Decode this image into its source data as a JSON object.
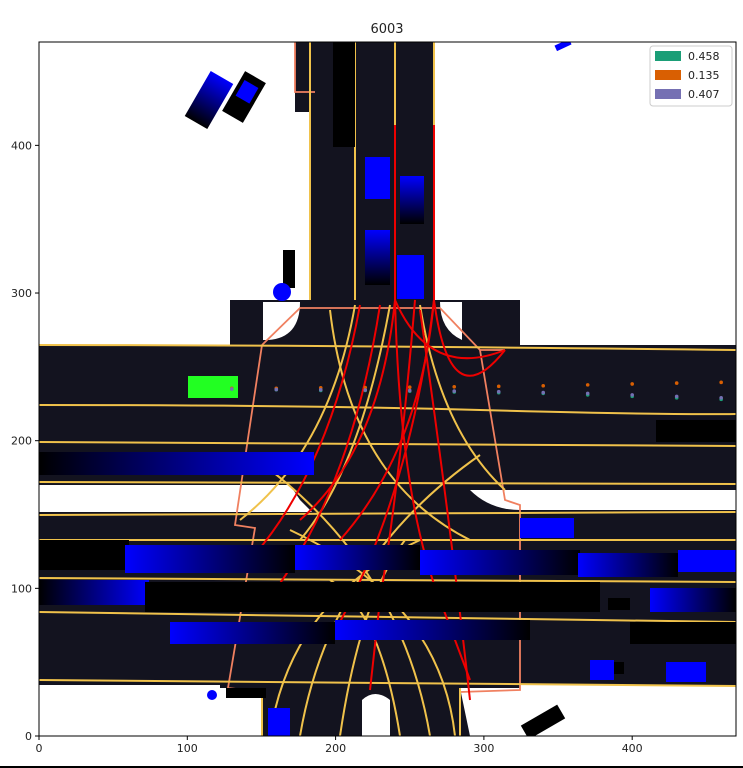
{
  "chart_data": {
    "type": "scatter",
    "title": "6003",
    "xlim": [
      0,
      470
    ],
    "ylim": [
      0,
      470
    ],
    "x_ticks": [
      0,
      100,
      200,
      300,
      400
    ],
    "y_ticks": [
      0,
      100,
      200,
      300,
      400
    ],
    "legend_placement": "top-right",
    "series": [
      {
        "name": "0.458",
        "color": "#1b9e77",
        "x": [
          130,
          160,
          190,
          220,
          250,
          280,
          310,
          340,
          370,
          400,
          430,
          460
        ],
        "y": [
          235,
          234.5,
          234,
          234,
          233.5,
          233,
          232.5,
          232,
          231,
          230,
          229,
          228
        ]
      },
      {
        "name": "0.135",
        "color": "#d95f02",
        "x": [
          130,
          160,
          190,
          220,
          250,
          280,
          310,
          340,
          370,
          400,
          430,
          460
        ],
        "y": [
          235.5,
          235.5,
          235.8,
          236,
          236.2,
          236.5,
          236.8,
          237.2,
          237.8,
          238.4,
          239,
          239.5
        ]
      },
      {
        "name": "0.407",
        "color": "#7570b3",
        "x": [
          130,
          160,
          190,
          220,
          250,
          280,
          310,
          340,
          370,
          400,
          430,
          460
        ],
        "y": [
          235,
          234.7,
          234.5,
          234.3,
          234,
          233.6,
          233.2,
          232.6,
          232,
          231,
          230,
          229
        ]
      }
    ]
  },
  "scene": {
    "ego_color": "#22ff22",
    "vehicle_color": "#0000ff",
    "road_color": "#13131f",
    "lane_line_color": "#f0c24b",
    "lane_route_color": "#ee0000",
    "crosswalk_color": "#f08060"
  }
}
